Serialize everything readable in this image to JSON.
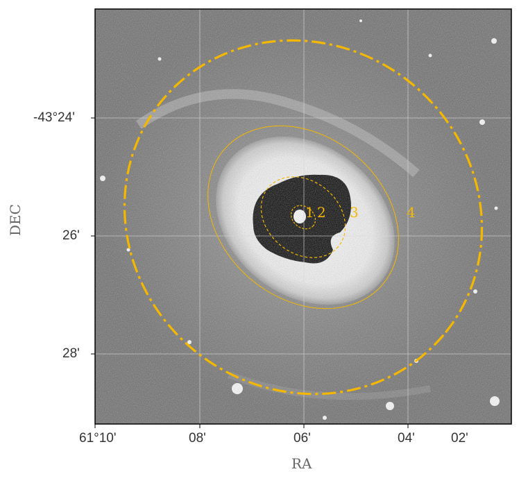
{
  "figure": {
    "x_axis_label": "RA",
    "y_axis_label": "DEC",
    "x_ticks": [
      "61°10'",
      "08'",
      "06'",
      "04'",
      "02'"
    ],
    "y_ticks": [
      "-43°24'",
      "26'",
      "28'"
    ],
    "aperture_labels": [
      "1",
      "2",
      "3",
      "4"
    ],
    "colors": {
      "aperture": "#f5b800",
      "background": "#6b6b6b",
      "ring_bright": "#f4f4f4",
      "core_dark": "#000000",
      "grid": "#d0d0d0"
    }
  }
}
